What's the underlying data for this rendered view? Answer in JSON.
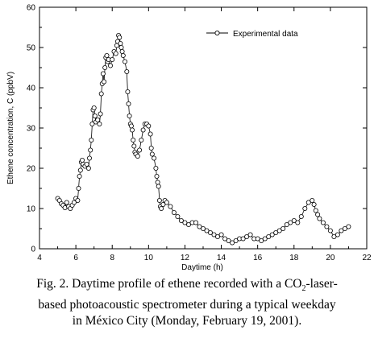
{
  "chart_data": {
    "type": "line",
    "xlabel": "Daytime (h)",
    "ylabel": "Ethene concentration, C (ppbV)",
    "xlim": [
      4,
      22
    ],
    "ylim": [
      0,
      60
    ],
    "xticks": [
      "4",
      "6",
      "8",
      "10",
      "12",
      "14",
      "16",
      "18",
      "20",
      "22"
    ],
    "yticks": [
      "0",
      "10",
      "20",
      "30",
      "40",
      "50",
      "60"
    ],
    "legend_position": "top-right",
    "grid": false,
    "series": [
      {
        "name": "Experimental data",
        "marker": "open-circle",
        "line_color": "#000000",
        "points": [
          [
            5.0,
            12.5
          ],
          [
            5.1,
            12.0
          ],
          [
            5.2,
            11.2
          ],
          [
            5.3,
            10.8
          ],
          [
            5.4,
            10.2
          ],
          [
            5.5,
            11.5
          ],
          [
            5.6,
            10.5
          ],
          [
            5.7,
            10.0
          ],
          [
            5.8,
            10.8
          ],
          [
            5.9,
            11.5
          ],
          [
            6.0,
            12.5
          ],
          [
            6.1,
            12.0
          ],
          [
            6.15,
            15.0
          ],
          [
            6.2,
            18.0
          ],
          [
            6.25,
            19.5
          ],
          [
            6.3,
            21.5
          ],
          [
            6.35,
            22.0
          ],
          [
            6.4,
            21.0
          ],
          [
            6.5,
            20.5
          ],
          [
            6.6,
            21.0
          ],
          [
            6.7,
            20.0
          ],
          [
            6.75,
            22.5
          ],
          [
            6.8,
            24.5
          ],
          [
            6.85,
            27.0
          ],
          [
            6.9,
            31.0
          ],
          [
            6.95,
            34.5
          ],
          [
            7.0,
            35.0
          ],
          [
            7.05,
            33.0
          ],
          [
            7.1,
            31.5
          ],
          [
            7.2,
            32.0
          ],
          [
            7.3,
            31.0
          ],
          [
            7.35,
            33.5
          ],
          [
            7.4,
            38.5
          ],
          [
            7.45,
            41.0
          ],
          [
            7.5,
            43.5
          ],
          [
            7.55,
            41.5
          ],
          [
            7.6,
            45.0
          ],
          [
            7.65,
            47.5
          ],
          [
            7.7,
            48.0
          ],
          [
            7.75,
            46.5
          ],
          [
            7.8,
            47.0
          ],
          [
            7.9,
            45.5
          ],
          [
            8.0,
            47.0
          ],
          [
            8.1,
            49.0
          ],
          [
            8.2,
            48.5
          ],
          [
            8.25,
            50.5
          ],
          [
            8.3,
            51.5
          ],
          [
            8.35,
            53.0
          ],
          [
            8.4,
            52.5
          ],
          [
            8.45,
            51.0
          ],
          [
            8.5,
            50.0
          ],
          [
            8.55,
            49.0
          ],
          [
            8.6,
            48.0
          ],
          [
            8.7,
            46.5
          ],
          [
            8.8,
            44.0
          ],
          [
            8.85,
            39.0
          ],
          [
            8.9,
            36.0
          ],
          [
            8.95,
            33.0
          ],
          [
            9.0,
            31.0
          ],
          [
            9.05,
            30.5
          ],
          [
            9.1,
            29.5
          ],
          [
            9.15,
            27.0
          ],
          [
            9.2,
            25.5
          ],
          [
            9.25,
            24.0
          ],
          [
            9.3,
            23.5
          ],
          [
            9.4,
            23.0
          ],
          [
            9.5,
            24.5
          ],
          [
            9.6,
            27.0
          ],
          [
            9.7,
            29.5
          ],
          [
            9.8,
            31.0
          ],
          [
            9.9,
            31.0
          ],
          [
            10.0,
            30.5
          ],
          [
            10.1,
            28.5
          ],
          [
            10.15,
            25.0
          ],
          [
            10.2,
            23.5
          ],
          [
            10.3,
            22.5
          ],
          [
            10.4,
            20.0
          ],
          [
            10.45,
            18.0
          ],
          [
            10.5,
            16.5
          ],
          [
            10.55,
            15.5
          ],
          [
            10.6,
            12.0
          ],
          [
            10.65,
            10.5
          ],
          [
            10.7,
            10.0
          ],
          [
            10.8,
            11.0
          ],
          [
            10.9,
            12.0
          ],
          [
            11.0,
            11.5
          ],
          [
            11.2,
            10.5
          ],
          [
            11.4,
            9.0
          ],
          [
            11.6,
            8.0
          ],
          [
            11.8,
            7.0
          ],
          [
            12.0,
            6.5
          ],
          [
            12.2,
            6.0
          ],
          [
            12.4,
            6.5
          ],
          [
            12.6,
            6.5
          ],
          [
            12.8,
            5.5
          ],
          [
            13.0,
            5.0
          ],
          [
            13.2,
            4.5
          ],
          [
            13.4,
            4.0
          ],
          [
            13.6,
            3.5
          ],
          [
            13.8,
            3.0
          ],
          [
            14.0,
            3.5
          ],
          [
            14.2,
            2.5
          ],
          [
            14.4,
            2.0
          ],
          [
            14.6,
            1.5
          ],
          [
            14.8,
            2.0
          ],
          [
            15.0,
            2.5
          ],
          [
            15.2,
            2.5
          ],
          [
            15.4,
            3.0
          ],
          [
            15.6,
            3.5
          ],
          [
            15.8,
            2.5
          ],
          [
            16.0,
            2.5
          ],
          [
            16.2,
            2.0
          ],
          [
            16.4,
            2.5
          ],
          [
            16.6,
            3.0
          ],
          [
            16.8,
            3.5
          ],
          [
            17.0,
            4.0
          ],
          [
            17.2,
            4.5
          ],
          [
            17.4,
            5.0
          ],
          [
            17.6,
            6.0
          ],
          [
            17.8,
            6.5
          ],
          [
            18.0,
            7.0
          ],
          [
            18.2,
            6.5
          ],
          [
            18.4,
            8.0
          ],
          [
            18.6,
            10.0
          ],
          [
            18.8,
            11.5
          ],
          [
            19.0,
            12.0
          ],
          [
            19.1,
            11.0
          ],
          [
            19.2,
            9.5
          ],
          [
            19.3,
            8.5
          ],
          [
            19.4,
            7.5
          ],
          [
            19.6,
            6.5
          ],
          [
            19.8,
            5.5
          ],
          [
            20.0,
            4.5
          ],
          [
            20.2,
            3.0
          ],
          [
            20.4,
            3.5
          ],
          [
            20.6,
            4.5
          ],
          [
            20.8,
            5.0
          ],
          [
            21.0,
            5.5
          ]
        ]
      }
    ]
  },
  "caption": {
    "line1_prefix": "Fig. 2. Daytime profile of ethene recorded with a CO",
    "line1_sub": "2",
    "line1_suffix": "-laser-",
    "line2": "based photoacoustic spectrometer during a typical weekday",
    "line3": "in México City (Monday, February 19, 2001)."
  }
}
